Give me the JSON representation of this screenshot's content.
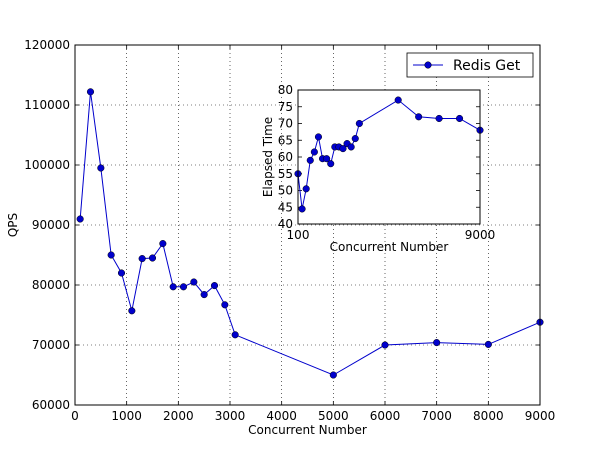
{
  "chart_data": [
    {
      "type": "line",
      "xlabel": "Concurrent Number",
      "ylabel": "QPS",
      "xlim": [
        0,
        9000
      ],
      "ylim": [
        60000,
        120000
      ],
      "xticks": [
        0,
        1000,
        2000,
        3000,
        4000,
        5000,
        6000,
        7000,
        8000,
        9000
      ],
      "yticks": [
        60000,
        70000,
        80000,
        90000,
        100000,
        110000,
        120000
      ],
      "grid": true,
      "legend": "top-right",
      "series": [
        {
          "name": "Redis Get",
          "color": "#0000cc",
          "x": [
            100,
            300,
            500,
            700,
            900,
            1100,
            1300,
            1500,
            1700,
            1900,
            2100,
            2300,
            2500,
            2700,
            2900,
            3100,
            5000,
            6000,
            7000,
            8000,
            9000
          ],
          "y": [
            91000,
            112200,
            99500,
            85000,
            82000,
            75700,
            84400,
            84500,
            86900,
            79700,
            79700,
            80500,
            78400,
            79900,
            76700,
            71700,
            65000,
            70000,
            70400,
            70100,
            73800
          ]
        }
      ]
    },
    {
      "type": "line",
      "xlabel": "Concurrent Number",
      "ylabel": "Elapsed Time",
      "xlim": [
        100,
        9000
      ],
      "ylim": [
        40,
        80
      ],
      "xticks": [
        100,
        9000
      ],
      "yticks": [
        40,
        45,
        50,
        55,
        60,
        65,
        70,
        75,
        80
      ],
      "grid": false,
      "series": [
        {
          "color": "#0000cc",
          "x": [
            100,
            300,
            500,
            700,
            900,
            1100,
            1300,
            1500,
            1700,
            1900,
            2100,
            2300,
            2500,
            2700,
            2900,
            3100,
            5000,
            6000,
            7000,
            8000,
            9000
          ],
          "y": [
            55,
            44.5,
            50.5,
            59,
            61.5,
            66,
            59.5,
            59.5,
            58,
            63,
            63,
            62.5,
            64,
            63,
            65.5,
            70,
            77,
            72,
            71.5,
            71.5,
            68
          ]
        }
      ]
    }
  ]
}
